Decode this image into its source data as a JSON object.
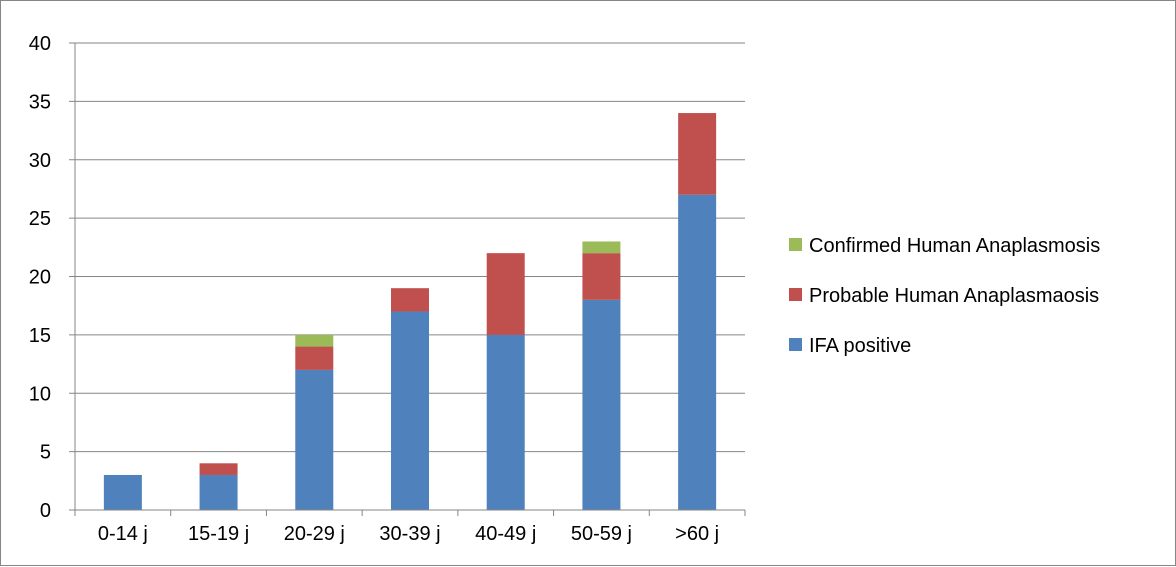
{
  "chart_data": {
    "type": "bar",
    "stacked": true,
    "categories": [
      "0-14 j",
      "15-19 j",
      "20-29 j",
      "30-39 j",
      "40-49 j",
      "50-59 j",
      ">60 j"
    ],
    "series": [
      {
        "name": "IFA positive",
        "color": "#4F81BD",
        "values": [
          3,
          3,
          12,
          17,
          15,
          18,
          27
        ]
      },
      {
        "name": "Probable Human Anaplasmaosis",
        "color": "#C0504D",
        "values": [
          0,
          1,
          2,
          2,
          7,
          4,
          7
        ]
      },
      {
        "name": "Confirmed Human Anaplasmosis",
        "color": "#9BBB59",
        "values": [
          0,
          0,
          1,
          0,
          0,
          1,
          0
        ]
      }
    ],
    "ylim": [
      0,
      40
    ],
    "yticks": [
      0,
      5,
      10,
      15,
      20,
      25,
      30,
      35,
      40
    ],
    "grid": true,
    "legend": "right",
    "title": "",
    "xlabel": "",
    "ylabel": ""
  }
}
